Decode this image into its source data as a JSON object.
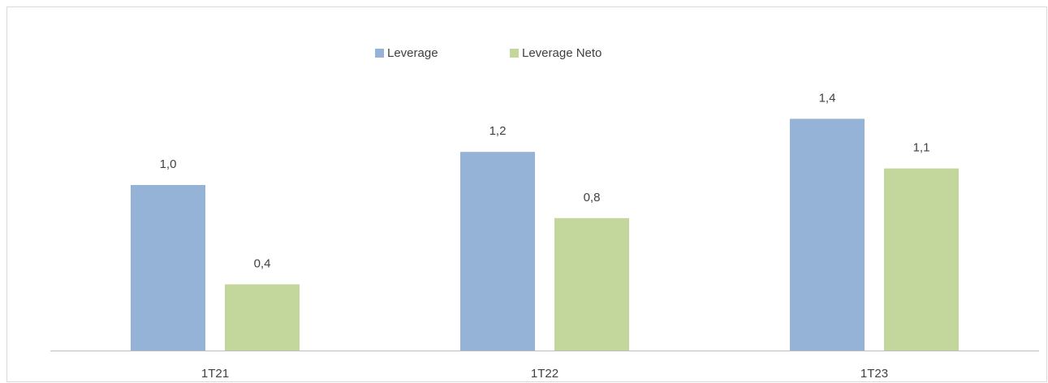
{
  "chart_data": {
    "type": "bar",
    "categories": [
      "1T21",
      "1T22",
      "1T23"
    ],
    "series": [
      {
        "name": "Leverage",
        "color": "#95b3d7",
        "values": [
          1.0,
          1.2,
          1.4
        ],
        "value_labels": [
          "1,0",
          "1,2",
          "1,4"
        ]
      },
      {
        "name": "Leverage Neto",
        "color": "#c3d69b",
        "values": [
          0.4,
          0.8,
          1.1
        ],
        "value_labels": [
          "0,4",
          "0,8",
          "1,1"
        ]
      }
    ],
    "ylim": [
      0,
      2
    ],
    "legend": "top"
  }
}
